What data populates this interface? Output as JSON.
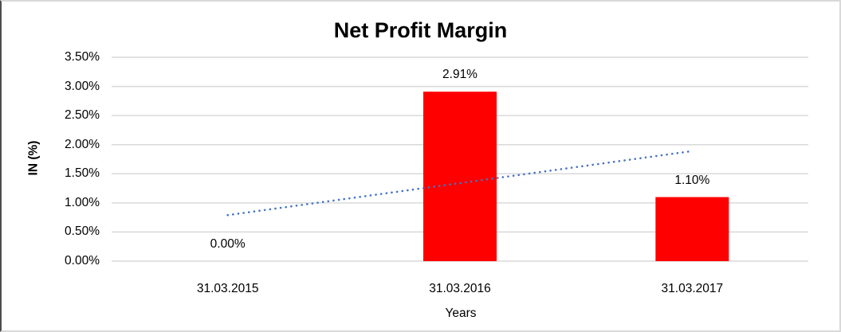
{
  "chart": {
    "title": "Net Profit Margin",
    "xlabel": "Years",
    "ylabel": "IN (%)"
  },
  "chart_data": {
    "type": "bar",
    "title": "Net Profit Margin",
    "categories": [
      "31.03.2015",
      "31.03.2016",
      "31.03.2017"
    ],
    "values": [
      0.0,
      2.91,
      1.1
    ],
    "data_labels": [
      "0.00%",
      "2.91%",
      "1.10%"
    ],
    "xlabel": "Years",
    "ylabel": "IN (%)",
    "ylim": [
      0,
      3.5
    ],
    "y_ticks": [
      0,
      0.5,
      1.0,
      1.5,
      2.0,
      2.5,
      3.0,
      3.5
    ],
    "y_tick_labels": [
      "0.00%",
      "0.50%",
      "1.00%",
      "1.50%",
      "2.00%",
      "2.50%",
      "3.00%",
      "3.50%"
    ],
    "grid": true,
    "legend": "none",
    "bar_color": "#FF0000",
    "gridline_color": "#D9D9D9",
    "text_color": "#000000",
    "trendline": {
      "type": "linear",
      "style": "dotted",
      "color": "#4472C4",
      "start_value": 0.79,
      "end_value": 1.89
    }
  }
}
